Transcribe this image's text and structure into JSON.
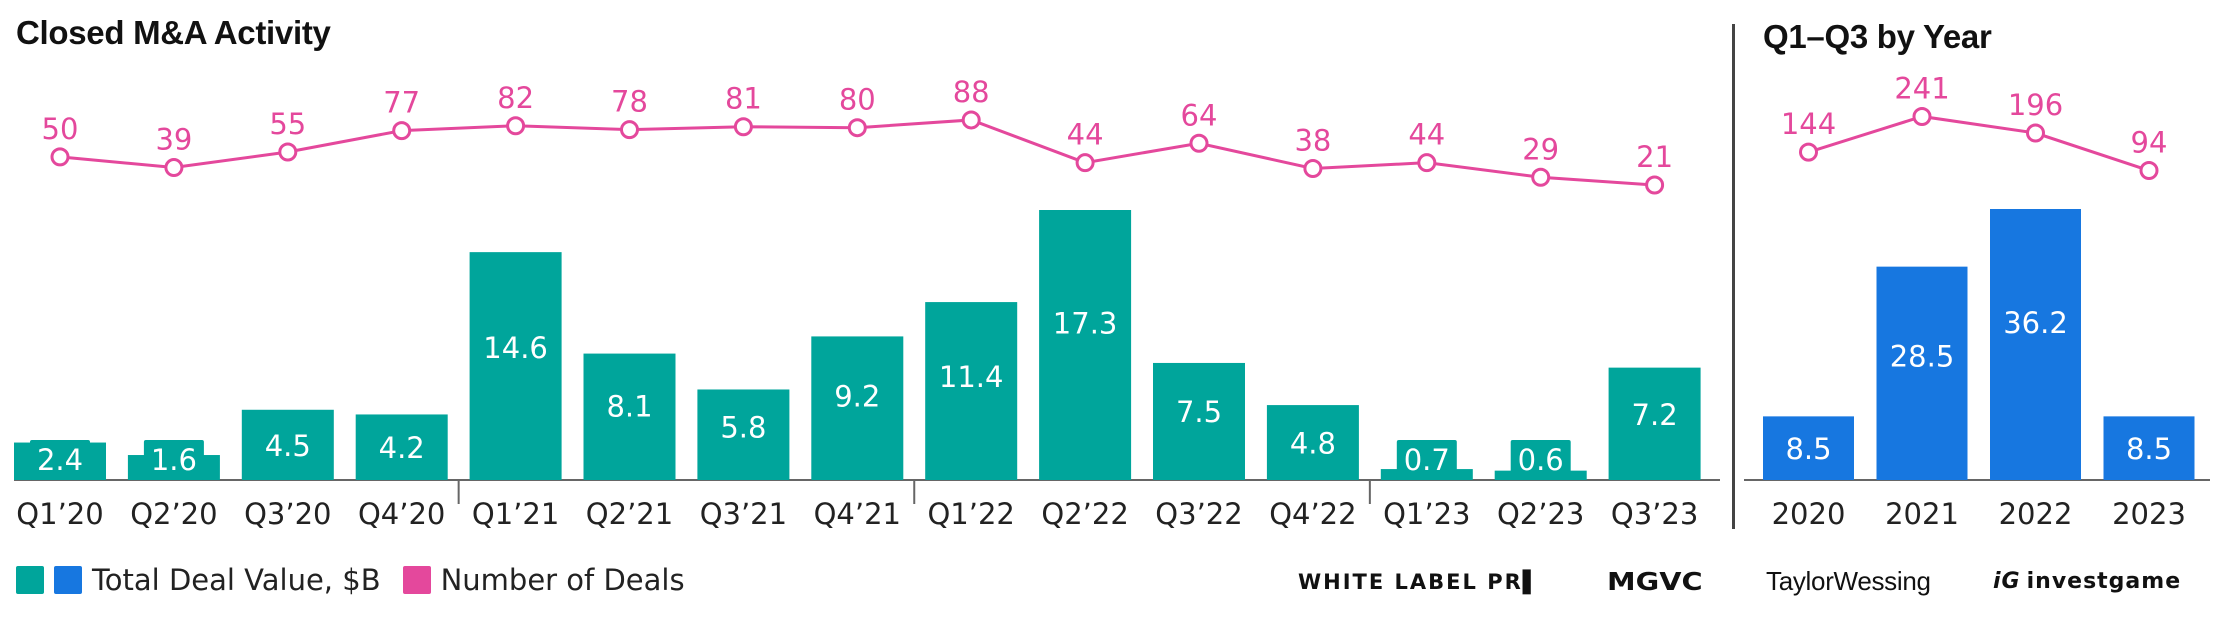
{
  "colors": {
    "teal": "#00a59b",
    "blue": "#1777e0",
    "pink": "#e4489c",
    "axis": "#555555"
  },
  "chart_data": [
    {
      "type": "bar+line",
      "title": "Closed M&A Activity",
      "categories": [
        "Q1’20",
        "Q2’20",
        "Q3’20",
        "Q4’20",
        "Q1’21",
        "Q2’21",
        "Q3’21",
        "Q4’21",
        "Q1’22",
        "Q2’22",
        "Q3’22",
        "Q4’22",
        "Q1’23",
        "Q2’23",
        "Q3’23"
      ],
      "series": [
        {
          "name": "Total Deal Value, $B",
          "type": "bar",
          "color": "#00a59b",
          "values": [
            2.4,
            1.6,
            4.5,
            4.2,
            14.6,
            8.1,
            5.8,
            9.2,
            11.4,
            17.3,
            7.5,
            4.8,
            0.7,
            0.6,
            7.2
          ],
          "labels": [
            "2.4",
            "1.6",
            "4.5",
            "4.2",
            "14.6",
            "8.1",
            "5.8",
            "9.2",
            "11.4",
            "17.3",
            "7.5",
            "4.8",
            "0.7",
            "0.6",
            "7.2"
          ]
        },
        {
          "name": "Number of Deals",
          "type": "line",
          "color": "#e4489c",
          "values": [
            50,
            39,
            55,
            77,
            82,
            78,
            81,
            80,
            88,
            44,
            64,
            38,
            44,
            29,
            21
          ]
        }
      ],
      "ylim": [
        0,
        17.3
      ],
      "year_separators_after": [
        3,
        7,
        11
      ]
    },
    {
      "type": "bar+line",
      "title": "Q1–Q3 by Year",
      "categories": [
        "2020",
        "2021",
        "2022",
        "2023"
      ],
      "series": [
        {
          "name": "Total Deal Value, $B",
          "type": "bar",
          "color": "#1777e0",
          "values": [
            8.5,
            28.5,
            36.2,
            8.5
          ],
          "labels": [
            "8.5",
            "28.5",
            "36.2",
            "8.5"
          ]
        },
        {
          "name": "Number of Deals",
          "type": "line",
          "color": "#e4489c",
          "values": [
            144,
            241,
            196,
            94
          ]
        }
      ],
      "ylim": [
        0,
        36.2
      ]
    }
  ],
  "legend": {
    "value_label": "Total Deal Value, $B",
    "deals_label": "Number of Deals"
  },
  "logos": {
    "wlp": "WHITE LABEL PR",
    "mgvc": "MGVC",
    "tw": "TaylorWessing",
    "ig_mark": "iG",
    "ig": "investgame"
  }
}
